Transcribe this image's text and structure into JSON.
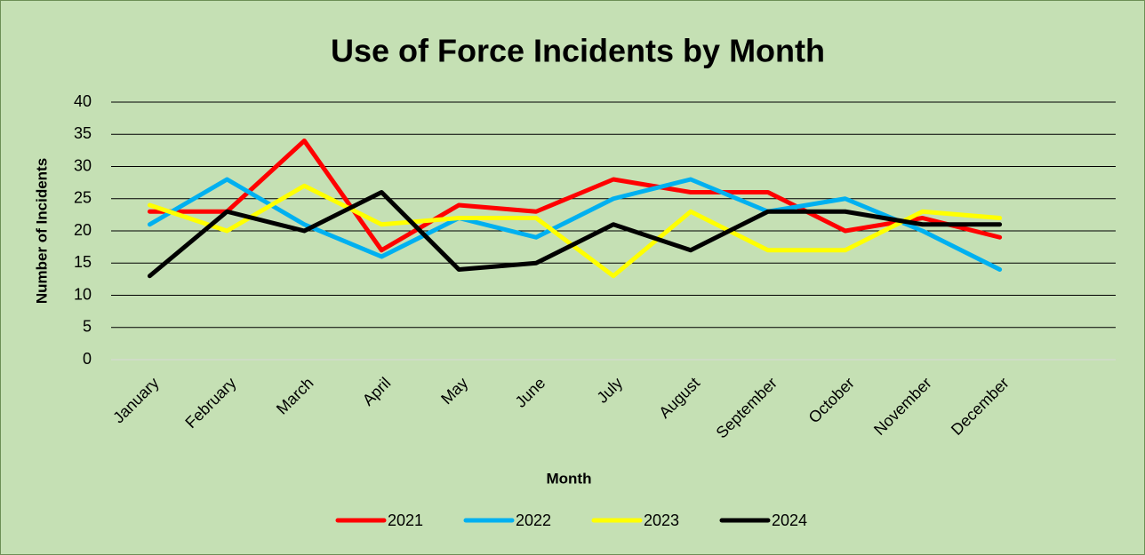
{
  "chart_data": {
    "type": "line",
    "title": "Use of Force Incidents by Month",
    "xlabel": "Month",
    "ylabel": "Number of Incidents",
    "categories": [
      "January",
      "February",
      "March",
      "April",
      "May",
      "June",
      "July",
      "August",
      "September",
      "October",
      "November",
      "December",
      null
    ],
    "series": [
      {
        "name": "2021",
        "color": "#ff0000",
        "values": [
          23,
          23,
          34,
          17,
          24,
          23,
          28,
          26,
          26,
          20,
          22,
          19,
          null
        ]
      },
      {
        "name": "2022",
        "color": "#00b0f0",
        "values": [
          21,
          28,
          21,
          16,
          22,
          19,
          25,
          28,
          23,
          25,
          20,
          14,
          null
        ]
      },
      {
        "name": "2023",
        "color": "#ffff00",
        "values": [
          24,
          20,
          27,
          21,
          22,
          22,
          13,
          23,
          17,
          17,
          23,
          22,
          null
        ]
      },
      {
        "name": "2024",
        "color": "#000000",
        "values": [
          13,
          23,
          20,
          26,
          14,
          15,
          21,
          17,
          23,
          23,
          21,
          21,
          null
        ]
      }
    ],
    "ylim": [
      0,
      40
    ],
    "yticks": [
      0,
      5,
      10,
      15,
      20,
      25,
      30,
      35,
      40
    ],
    "grid": true,
    "legend": "bottom"
  }
}
